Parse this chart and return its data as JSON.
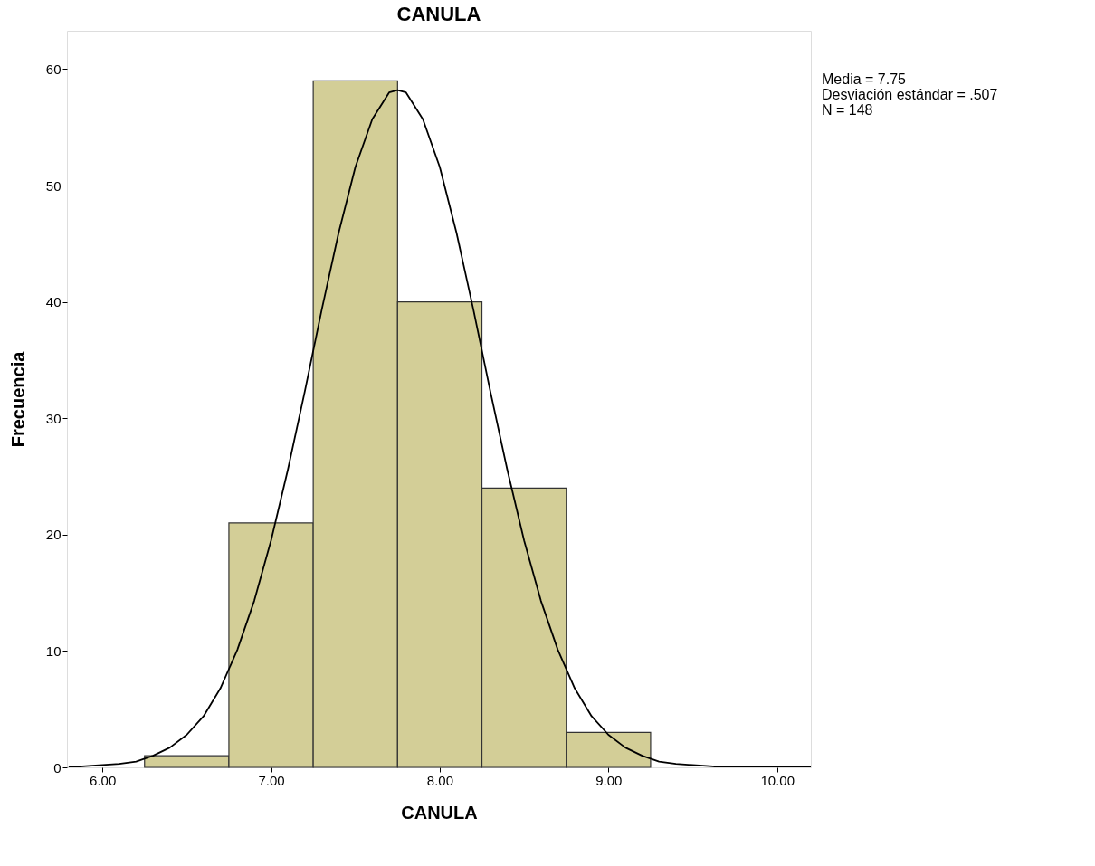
{
  "chart_data": {
    "type": "histogram",
    "title": "CANULA",
    "xlabel": "CANULA",
    "ylabel": "Frecuencia",
    "bins": [
      6.25,
      6.75,
      7.25,
      7.75,
      8.25,
      8.75,
      9.25
    ],
    "values": [
      1,
      21,
      59,
      40,
      24,
      3
    ],
    "color": "#d3ce97",
    "series": [
      {
        "type": "line",
        "color": "#000000",
        "x": [
          5.8,
          5.9,
          6.0,
          6.1,
          6.2,
          6.3,
          6.4,
          6.5,
          6.6,
          6.7,
          6.8,
          6.9,
          7.0,
          7.1,
          7.2,
          7.3,
          7.4,
          7.5,
          7.6,
          7.7,
          7.75,
          7.8,
          7.9,
          8.0,
          8.1,
          8.2,
          8.3,
          8.4,
          8.5,
          8.6,
          8.7,
          8.8,
          8.9,
          9.0,
          9.1,
          9.2,
          9.3,
          9.4,
          9.5,
          9.6,
          9.7,
          9.8,
          9.9,
          10.0,
          10.1,
          10.2
        ],
        "values": [
          0.0,
          0.1,
          0.2,
          0.3,
          0.5,
          1.0,
          1.7,
          2.8,
          4.4,
          6.8,
          10.1,
          14.3,
          19.5,
          25.6,
          32.3,
          39.3,
          45.9,
          51.6,
          55.7,
          58.0,
          58.2,
          58.0,
          55.7,
          51.6,
          45.9,
          39.3,
          32.3,
          25.6,
          19.5,
          14.3,
          10.1,
          6.8,
          4.4,
          2.8,
          1.7,
          1.0,
          0.5,
          0.3,
          0.2,
          0.1,
          0.0,
          0.0,
          0.0,
          0.0,
          0.0,
          0.0
        ]
      }
    ],
    "xlim": [
      5.79,
      10.2
    ],
    "xticks": [
      {
        "value": 6,
        "label": "6.00"
      },
      {
        "value": 7,
        "label": "7.00"
      },
      {
        "value": 8,
        "label": "8.00"
      },
      {
        "value": 9,
        "label": "9.00"
      },
      {
        "value": 10,
        "label": "10.00"
      }
    ],
    "ylim": [
      0,
      63.3
    ],
    "yticks": [
      0,
      10,
      20,
      30,
      40,
      50,
      60
    ],
    "grid": false,
    "annotations": [
      "Media = 7.75",
      "Desviación estándar = .507",
      "N = 148"
    ]
  }
}
